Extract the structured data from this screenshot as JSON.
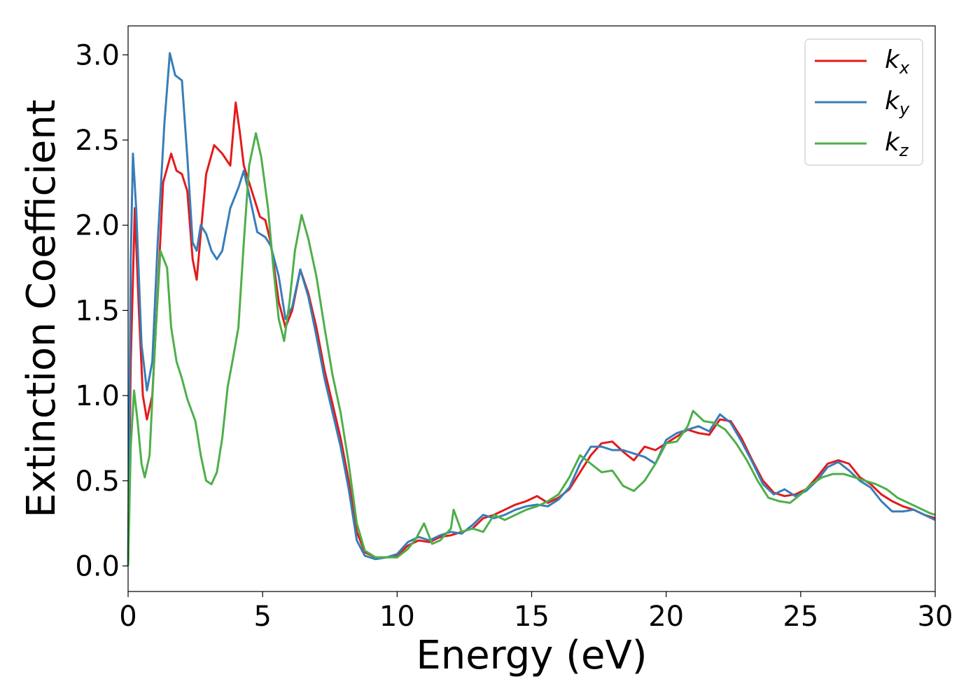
{
  "chart_data": {
    "type": "line",
    "title": "",
    "xlabel": "Energy (eV)",
    "ylabel": "Extinction Coefficient",
    "xlim": [
      0,
      30
    ],
    "ylim": [
      -0.15,
      3.17
    ],
    "xticks": [
      0,
      5,
      10,
      15,
      20,
      25,
      30
    ],
    "xtick_labels": [
      "0",
      "5",
      "10",
      "15",
      "20",
      "25",
      "30"
    ],
    "yticks": [
      0.0,
      0.5,
      1.0,
      1.5,
      2.0,
      2.5,
      3.0
    ],
    "ytick_labels": [
      "0.0",
      "0.5",
      "1.0",
      "1.5",
      "2.0",
      "2.5",
      "3.0"
    ],
    "grid": false,
    "legend_position": "top-right",
    "series": [
      {
        "name": "kx",
        "legend_main": "k",
        "legend_sub": "x",
        "color": "#e41a1c",
        "points": [
          [
            0,
            0.0
          ],
          [
            0.1,
            1.2
          ],
          [
            0.25,
            2.1
          ],
          [
            0.4,
            1.5
          ],
          [
            0.55,
            1.0
          ],
          [
            0.7,
            0.86
          ],
          [
            0.9,
            1.0
          ],
          [
            1.1,
            1.6
          ],
          [
            1.3,
            2.25
          ],
          [
            1.6,
            2.42
          ],
          [
            1.8,
            2.32
          ],
          [
            2.0,
            2.3
          ],
          [
            2.2,
            2.2
          ],
          [
            2.4,
            1.8
          ],
          [
            2.55,
            1.68
          ],
          [
            2.7,
            1.95
          ],
          [
            2.9,
            2.3
          ],
          [
            3.2,
            2.47
          ],
          [
            3.5,
            2.42
          ],
          [
            3.8,
            2.35
          ],
          [
            4.0,
            2.72
          ],
          [
            4.15,
            2.55
          ],
          [
            4.3,
            2.35
          ],
          [
            4.6,
            2.2
          ],
          [
            4.9,
            2.05
          ],
          [
            5.1,
            2.03
          ],
          [
            5.3,
            1.9
          ],
          [
            5.6,
            1.55
          ],
          [
            5.85,
            1.4
          ],
          [
            6.1,
            1.5
          ],
          [
            6.4,
            1.74
          ],
          [
            6.7,
            1.6
          ],
          [
            7.0,
            1.4
          ],
          [
            7.3,
            1.15
          ],
          [
            7.6,
            0.95
          ],
          [
            7.9,
            0.75
          ],
          [
            8.2,
            0.5
          ],
          [
            8.5,
            0.2
          ],
          [
            8.8,
            0.08
          ],
          [
            9.2,
            0.05
          ],
          [
            9.6,
            0.05
          ],
          [
            10.0,
            0.06
          ],
          [
            10.4,
            0.12
          ],
          [
            10.8,
            0.15
          ],
          [
            11.2,
            0.14
          ],
          [
            11.6,
            0.17
          ],
          [
            12.0,
            0.18
          ],
          [
            12.4,
            0.2
          ],
          [
            12.8,
            0.22
          ],
          [
            13.2,
            0.28
          ],
          [
            13.6,
            0.3
          ],
          [
            14.0,
            0.33
          ],
          [
            14.4,
            0.36
          ],
          [
            14.8,
            0.38
          ],
          [
            15.2,
            0.41
          ],
          [
            15.6,
            0.37
          ],
          [
            16.0,
            0.4
          ],
          [
            16.4,
            0.45
          ],
          [
            16.8,
            0.55
          ],
          [
            17.2,
            0.65
          ],
          [
            17.6,
            0.72
          ],
          [
            18.0,
            0.73
          ],
          [
            18.4,
            0.67
          ],
          [
            18.8,
            0.62
          ],
          [
            19.2,
            0.7
          ],
          [
            19.6,
            0.68
          ],
          [
            20.0,
            0.72
          ],
          [
            20.4,
            0.76
          ],
          [
            20.8,
            0.8
          ],
          [
            21.2,
            0.78
          ],
          [
            21.6,
            0.77
          ],
          [
            22.0,
            0.86
          ],
          [
            22.4,
            0.85
          ],
          [
            22.8,
            0.75
          ],
          [
            23.2,
            0.62
          ],
          [
            23.6,
            0.5
          ],
          [
            24.0,
            0.43
          ],
          [
            24.4,
            0.41
          ],
          [
            24.8,
            0.42
          ],
          [
            25.2,
            0.45
          ],
          [
            25.6,
            0.52
          ],
          [
            26.0,
            0.6
          ],
          [
            26.4,
            0.62
          ],
          [
            26.8,
            0.6
          ],
          [
            27.2,
            0.52
          ],
          [
            27.6,
            0.48
          ],
          [
            28.0,
            0.42
          ],
          [
            28.4,
            0.38
          ],
          [
            28.8,
            0.35
          ],
          [
            29.2,
            0.33
          ],
          [
            29.6,
            0.3
          ],
          [
            30.0,
            0.28
          ]
        ]
      },
      {
        "name": "ky",
        "legend_main": "k",
        "legend_sub": "y",
        "color": "#377eb8",
        "points": [
          [
            0,
            0.0
          ],
          [
            0.1,
            1.8
          ],
          [
            0.18,
            2.42
          ],
          [
            0.3,
            2.1
          ],
          [
            0.5,
            1.3
          ],
          [
            0.7,
            1.03
          ],
          [
            0.9,
            1.2
          ],
          [
            1.1,
            1.9
          ],
          [
            1.35,
            2.6
          ],
          [
            1.55,
            3.01
          ],
          [
            1.75,
            2.88
          ],
          [
            2.0,
            2.85
          ],
          [
            2.2,
            2.4
          ],
          [
            2.4,
            1.9
          ],
          [
            2.55,
            1.85
          ],
          [
            2.7,
            2.0
          ],
          [
            2.9,
            1.95
          ],
          [
            3.1,
            1.85
          ],
          [
            3.3,
            1.8
          ],
          [
            3.5,
            1.85
          ],
          [
            3.8,
            2.1
          ],
          [
            4.1,
            2.22
          ],
          [
            4.3,
            2.32
          ],
          [
            4.5,
            2.18
          ],
          [
            4.8,
            1.96
          ],
          [
            5.1,
            1.93
          ],
          [
            5.3,
            1.88
          ],
          [
            5.6,
            1.7
          ],
          [
            5.85,
            1.45
          ],
          [
            6.1,
            1.52
          ],
          [
            6.4,
            1.74
          ],
          [
            6.7,
            1.58
          ],
          [
            7.0,
            1.35
          ],
          [
            7.3,
            1.1
          ],
          [
            7.6,
            0.9
          ],
          [
            7.9,
            0.7
          ],
          [
            8.2,
            0.45
          ],
          [
            8.5,
            0.15
          ],
          [
            8.8,
            0.06
          ],
          [
            9.2,
            0.04
          ],
          [
            9.6,
            0.05
          ],
          [
            10.0,
            0.07
          ],
          [
            10.4,
            0.14
          ],
          [
            10.8,
            0.17
          ],
          [
            11.2,
            0.15
          ],
          [
            11.6,
            0.18
          ],
          [
            12.0,
            0.2
          ],
          [
            12.4,
            0.19
          ],
          [
            12.8,
            0.24
          ],
          [
            13.2,
            0.3
          ],
          [
            13.6,
            0.28
          ],
          [
            14.0,
            0.3
          ],
          [
            14.4,
            0.33
          ],
          [
            14.8,
            0.35
          ],
          [
            15.2,
            0.36
          ],
          [
            15.6,
            0.35
          ],
          [
            16.0,
            0.39
          ],
          [
            16.4,
            0.46
          ],
          [
            16.8,
            0.6
          ],
          [
            17.2,
            0.7
          ],
          [
            17.6,
            0.7
          ],
          [
            18.0,
            0.68
          ],
          [
            18.4,
            0.68
          ],
          [
            18.8,
            0.66
          ],
          [
            19.2,
            0.64
          ],
          [
            19.6,
            0.6
          ],
          [
            20.0,
            0.74
          ],
          [
            20.4,
            0.78
          ],
          [
            20.8,
            0.8
          ],
          [
            21.2,
            0.82
          ],
          [
            21.6,
            0.79
          ],
          [
            22.0,
            0.89
          ],
          [
            22.4,
            0.84
          ],
          [
            22.8,
            0.73
          ],
          [
            23.2,
            0.61
          ],
          [
            23.6,
            0.48
          ],
          [
            24.0,
            0.42
          ],
          [
            24.4,
            0.45
          ],
          [
            24.8,
            0.41
          ],
          [
            25.2,
            0.44
          ],
          [
            25.6,
            0.5
          ],
          [
            26.0,
            0.58
          ],
          [
            26.4,
            0.61
          ],
          [
            26.8,
            0.56
          ],
          [
            27.2,
            0.5
          ],
          [
            27.6,
            0.46
          ],
          [
            28.0,
            0.38
          ],
          [
            28.4,
            0.32
          ],
          [
            28.8,
            0.32
          ],
          [
            29.2,
            0.33
          ],
          [
            29.6,
            0.3
          ],
          [
            30.0,
            0.27
          ]
        ]
      },
      {
        "name": "kz",
        "legend_main": "k",
        "legend_sub": "z",
        "color": "#4daf4a",
        "points": [
          [
            0,
            0.0
          ],
          [
            0.1,
            0.7
          ],
          [
            0.22,
            1.03
          ],
          [
            0.35,
            0.85
          ],
          [
            0.5,
            0.6
          ],
          [
            0.62,
            0.52
          ],
          [
            0.8,
            0.65
          ],
          [
            1.0,
            1.3
          ],
          [
            1.2,
            1.85
          ],
          [
            1.45,
            1.75
          ],
          [
            1.6,
            1.4
          ],
          [
            1.8,
            1.2
          ],
          [
            2.0,
            1.1
          ],
          [
            2.2,
            0.98
          ],
          [
            2.5,
            0.85
          ],
          [
            2.7,
            0.65
          ],
          [
            2.9,
            0.5
          ],
          [
            3.1,
            0.48
          ],
          [
            3.3,
            0.55
          ],
          [
            3.5,
            0.75
          ],
          [
            3.7,
            1.05
          ],
          [
            3.9,
            1.22
          ],
          [
            4.1,
            1.4
          ],
          [
            4.3,
            1.9
          ],
          [
            4.5,
            2.35
          ],
          [
            4.75,
            2.54
          ],
          [
            4.95,
            2.4
          ],
          [
            5.2,
            2.1
          ],
          [
            5.4,
            1.75
          ],
          [
            5.6,
            1.45
          ],
          [
            5.8,
            1.32
          ],
          [
            6.0,
            1.55
          ],
          [
            6.2,
            1.85
          ],
          [
            6.45,
            2.06
          ],
          [
            6.7,
            1.92
          ],
          [
            7.0,
            1.7
          ],
          [
            7.3,
            1.4
          ],
          [
            7.6,
            1.12
          ],
          [
            7.9,
            0.9
          ],
          [
            8.2,
            0.6
          ],
          [
            8.5,
            0.25
          ],
          [
            8.8,
            0.09
          ],
          [
            9.2,
            0.05
          ],
          [
            9.6,
            0.05
          ],
          [
            10.0,
            0.05
          ],
          [
            10.4,
            0.1
          ],
          [
            10.7,
            0.16
          ],
          [
            11.0,
            0.25
          ],
          [
            11.3,
            0.13
          ],
          [
            11.6,
            0.15
          ],
          [
            12.0,
            0.22
          ],
          [
            12.1,
            0.33
          ],
          [
            12.4,
            0.2
          ],
          [
            12.8,
            0.22
          ],
          [
            13.2,
            0.2
          ],
          [
            13.6,
            0.3
          ],
          [
            14.0,
            0.27
          ],
          [
            14.4,
            0.3
          ],
          [
            14.8,
            0.33
          ],
          [
            15.2,
            0.35
          ],
          [
            15.6,
            0.38
          ],
          [
            16.0,
            0.42
          ],
          [
            16.4,
            0.52
          ],
          [
            16.8,
            0.65
          ],
          [
            17.2,
            0.6
          ],
          [
            17.6,
            0.55
          ],
          [
            18.0,
            0.56
          ],
          [
            18.4,
            0.47
          ],
          [
            18.8,
            0.44
          ],
          [
            19.2,
            0.5
          ],
          [
            19.6,
            0.6
          ],
          [
            20.0,
            0.72
          ],
          [
            20.4,
            0.73
          ],
          [
            20.8,
            0.82
          ],
          [
            21.0,
            0.91
          ],
          [
            21.4,
            0.85
          ],
          [
            21.8,
            0.84
          ],
          [
            22.2,
            0.8
          ],
          [
            22.6,
            0.72
          ],
          [
            23.0,
            0.62
          ],
          [
            23.4,
            0.5
          ],
          [
            23.8,
            0.4
          ],
          [
            24.2,
            0.38
          ],
          [
            24.6,
            0.37
          ],
          [
            25.0,
            0.42
          ],
          [
            25.4,
            0.48
          ],
          [
            25.8,
            0.52
          ],
          [
            26.2,
            0.54
          ],
          [
            26.6,
            0.54
          ],
          [
            27.0,
            0.52
          ],
          [
            27.4,
            0.5
          ],
          [
            27.8,
            0.48
          ],
          [
            28.2,
            0.45
          ],
          [
            28.6,
            0.4
          ],
          [
            29.0,
            0.37
          ],
          [
            29.4,
            0.34
          ],
          [
            29.8,
            0.31
          ],
          [
            30.0,
            0.3
          ]
        ]
      }
    ]
  }
}
